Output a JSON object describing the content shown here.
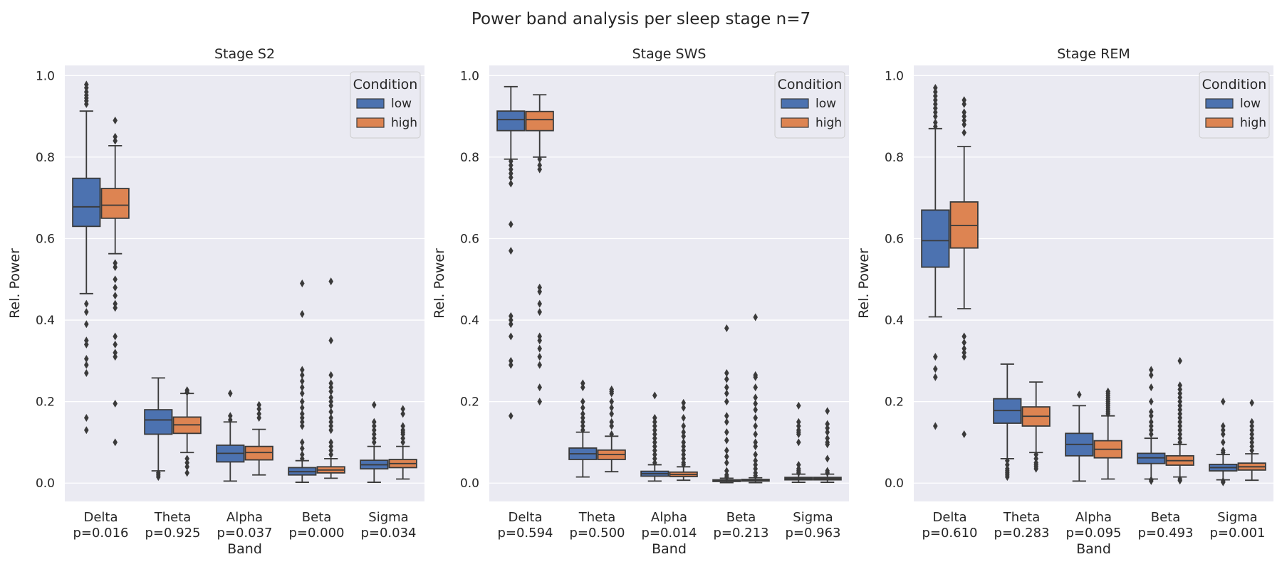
{
  "figure": {
    "title": "Power band analysis per sleep stage n=7"
  },
  "colors": {
    "low": "#4c72b0",
    "high": "#dd8452",
    "panel_bg": "#eaeaf2",
    "grid": "#ffffff",
    "line": "#3a3a3a"
  },
  "chart_data": [
    {
      "type": "box",
      "title": "Stage S2",
      "xlabel": "Band",
      "ylabel": "Rel. Power",
      "ylim": [
        -0.045,
        1.025
      ],
      "yticks": [
        "0.0",
        "0.2",
        "0.4",
        "0.6",
        "0.8",
        "1.0"
      ],
      "grid": true,
      "legend": {
        "title": "Condition",
        "placement": "top-right",
        "entries": [
          "low",
          "high"
        ]
      },
      "categories": [
        "Delta",
        "Theta",
        "Alpha",
        "Beta",
        "Sigma"
      ],
      "pvalues": [
        "p=0.016",
        "p=0.925",
        "p=0.037",
        "p=0.000",
        "p=0.034"
      ],
      "series": [
        {
          "name": "low",
          "boxes": [
            {
              "whislo": 0.465,
              "q1": 0.63,
              "med": 0.678,
              "q3": 0.748,
              "whishi": 0.913,
              "fliers": [
                0.978,
                0.97,
                0.96,
                0.952,
                0.945,
                0.938,
                0.93,
                0.44,
                0.42,
                0.39,
                0.35,
                0.34,
                0.305,
                0.29,
                0.27,
                0.16,
                0.13
              ]
            },
            {
              "whislo": 0.03,
              "q1": 0.12,
              "med": 0.155,
              "q3": 0.18,
              "whishi": 0.258,
              "fliers": [
                0.025,
                0.02,
                0.015
              ]
            },
            {
              "whislo": 0.005,
              "q1": 0.052,
              "med": 0.073,
              "q3": 0.093,
              "whishi": 0.15,
              "fliers": [
                0.22,
                0.165,
                0.155
              ]
            },
            {
              "whislo": 0.002,
              "q1": 0.02,
              "med": 0.028,
              "q3": 0.038,
              "whishi": 0.055,
              "fliers": [
                0.49,
                0.415,
                0.278,
                0.265,
                0.25,
                0.235,
                0.22,
                0.2,
                0.185,
                0.17,
                0.16,
                0.15,
                0.14,
                0.1,
                0.085,
                0.07,
                0.06
              ]
            },
            {
              "whislo": 0.002,
              "q1": 0.035,
              "med": 0.045,
              "q3": 0.056,
              "whishi": 0.09,
              "fliers": [
                0.192,
                0.15,
                0.14,
                0.13,
                0.12,
                0.11,
                0.1
              ]
            }
          ]
        },
        {
          "name": "high",
          "boxes": [
            {
              "whislo": 0.563,
              "q1": 0.65,
              "med": 0.682,
              "q3": 0.723,
              "whishi": 0.828,
              "fliers": [
                0.89,
                0.85,
                0.84,
                0.54,
                0.53,
                0.5,
                0.48,
                0.46,
                0.44,
                0.43,
                0.36,
                0.34,
                0.32,
                0.31,
                0.195,
                0.1
              ]
            },
            {
              "whislo": 0.075,
              "q1": 0.122,
              "med": 0.143,
              "q3": 0.162,
              "whishi": 0.22,
              "fliers": [
                0.228,
                0.223,
                0.06,
                0.05,
                0.04,
                0.025
              ]
            },
            {
              "whislo": 0.02,
              "q1": 0.057,
              "med": 0.075,
              "q3": 0.09,
              "whishi": 0.132,
              "fliers": [
                0.192,
                0.182,
                0.17,
                0.16
              ]
            },
            {
              "whislo": 0.012,
              "q1": 0.025,
              "med": 0.032,
              "q3": 0.04,
              "whishi": 0.06,
              "fliers": [
                0.495,
                0.35,
                0.265,
                0.245,
                0.235,
                0.225,
                0.21,
                0.2,
                0.19,
                0.175,
                0.16,
                0.15,
                0.14,
                0.13,
                0.1,
                0.09,
                0.08,
                0.07
              ]
            },
            {
              "whislo": 0.01,
              "q1": 0.038,
              "med": 0.048,
              "q3": 0.058,
              "whishi": 0.09,
              "fliers": [
                0.182,
                0.17,
                0.14,
                0.13,
                0.125,
                0.12,
                0.11,
                0.1
              ]
            }
          ]
        }
      ]
    },
    {
      "type": "box",
      "title": "Stage SWS",
      "xlabel": "Band",
      "ylabel": "Rel. Power",
      "ylim": [
        -0.045,
        1.025
      ],
      "yticks": [
        "0.0",
        "0.2",
        "0.4",
        "0.6",
        "0.8",
        "1.0"
      ],
      "grid": true,
      "legend": {
        "title": "Condition",
        "placement": "top-right",
        "entries": [
          "low",
          "high"
        ]
      },
      "categories": [
        "Delta",
        "Theta",
        "Alpha",
        "Beta",
        "Sigma"
      ],
      "pvalues": [
        "p=0.594",
        "p=0.500",
        "p=0.014",
        "p=0.213",
        "p=0.963"
      ],
      "series": [
        {
          "name": "low",
          "boxes": [
            {
              "whislo": 0.795,
              "q1": 0.865,
              "med": 0.892,
              "q3": 0.913,
              "whishi": 0.973,
              "fliers": [
                0.79,
                0.78,
                0.77,
                0.76,
                0.75,
                0.735,
                0.635,
                0.57,
                0.41,
                0.4,
                0.39,
                0.36,
                0.3,
                0.29,
                0.165
              ]
            },
            {
              "whislo": 0.015,
              "q1": 0.058,
              "med": 0.072,
              "q3": 0.086,
              "whishi": 0.125,
              "fliers": [
                0.245,
                0.235,
                0.2,
                0.185,
                0.17,
                0.16,
                0.15,
                0.14,
                0.13
              ]
            },
            {
              "whislo": 0.005,
              "q1": 0.017,
              "med": 0.023,
              "q3": 0.029,
              "whishi": 0.045,
              "fliers": [
                0.215,
                0.16,
                0.15,
                0.14,
                0.13,
                0.12,
                0.11,
                0.1,
                0.09,
                0.08,
                0.07,
                0.06,
                0.05
              ]
            },
            {
              "whislo": 0.001,
              "q1": 0.004,
              "med": 0.006,
              "q3": 0.008,
              "whishi": 0.012,
              "fliers": [
                0.38,
                0.27,
                0.255,
                0.235,
                0.22,
                0.2,
                0.165,
                0.15,
                0.125,
                0.105,
                0.08,
                0.065,
                0.05,
                0.03,
                0.02,
                0.015
              ]
            },
            {
              "whislo": 0.002,
              "q1": 0.008,
              "med": 0.011,
              "q3": 0.014,
              "whishi": 0.022,
              "fliers": [
                0.19,
                0.15,
                0.14,
                0.13,
                0.125,
                0.12,
                0.1,
                0.045,
                0.035,
                0.03,
                0.025
              ]
            }
          ]
        },
        {
          "name": "high",
          "boxes": [
            {
              "whislo": 0.8,
              "q1": 0.865,
              "med": 0.892,
              "q3": 0.912,
              "whishi": 0.953,
              "fliers": [
                0.795,
                0.78,
                0.77,
                0.48,
                0.47,
                0.44,
                0.42,
                0.36,
                0.35,
                0.33,
                0.31,
                0.29,
                0.235,
                0.2
              ]
            },
            {
              "whislo": 0.028,
              "q1": 0.058,
              "med": 0.07,
              "q3": 0.081,
              "whishi": 0.115,
              "fliers": [
                0.23,
                0.225,
                0.22,
                0.2,
                0.185,
                0.17,
                0.15,
                0.14,
                0.12
              ]
            },
            {
              "whislo": 0.007,
              "q1": 0.016,
              "med": 0.021,
              "q3": 0.027,
              "whishi": 0.04,
              "fliers": [
                0.197,
                0.185,
                0.16,
                0.14,
                0.125,
                0.115,
                0.1,
                0.09,
                0.08,
                0.07,
                0.06,
                0.05,
                0.045
              ]
            },
            {
              "whislo": 0.001,
              "q1": 0.005,
              "med": 0.007,
              "q3": 0.009,
              "whishi": 0.013,
              "fliers": [
                0.407,
                0.265,
                0.26,
                0.235,
                0.21,
                0.195,
                0.18,
                0.16,
                0.14,
                0.12,
                0.1,
                0.09,
                0.07,
                0.055,
                0.045,
                0.035,
                0.025,
                0.018
              ]
            },
            {
              "whislo": 0.002,
              "q1": 0.008,
              "med": 0.011,
              "q3": 0.014,
              "whishi": 0.022,
              "fliers": [
                0.177,
                0.145,
                0.135,
                0.125,
                0.11,
                0.1,
                0.095,
                0.06,
                0.03,
                0.025
              ]
            }
          ]
        }
      ]
    },
    {
      "type": "box",
      "title": "Stage REM",
      "xlabel": "Band",
      "ylabel": "Rel. Power",
      "ylim": [
        -0.045,
        1.025
      ],
      "yticks": [
        "0.0",
        "0.2",
        "0.4",
        "0.6",
        "0.8",
        "1.0"
      ],
      "grid": true,
      "legend": {
        "title": "Condition",
        "placement": "top-right",
        "entries": [
          "low",
          "high"
        ]
      },
      "categories": [
        "Delta",
        "Theta",
        "Alpha",
        "Beta",
        "Sigma"
      ],
      "pvalues": [
        "p=0.610",
        "p=0.283",
        "p=0.095",
        "p=0.493",
        "p=0.001"
      ],
      "series": [
        {
          "name": "low",
          "boxes": [
            {
              "whislo": 0.408,
              "q1": 0.53,
              "med": 0.595,
              "q3": 0.67,
              "whishi": 0.87,
              "fliers": [
                0.97,
                0.96,
                0.95,
                0.94,
                0.93,
                0.92,
                0.91,
                0.9,
                0.885,
                0.875,
                0.31,
                0.28,
                0.26,
                0.14
              ]
            },
            {
              "whislo": 0.06,
              "q1": 0.147,
              "med": 0.178,
              "q3": 0.207,
              "whishi": 0.292,
              "fliers": [
                0.055,
                0.045,
                0.035,
                0.03,
                0.025,
                0.02,
                0.015
              ]
            },
            {
              "whislo": 0.005,
              "q1": 0.067,
              "med": 0.095,
              "q3": 0.122,
              "whishi": 0.19,
              "fliers": [
                0.217
              ]
            },
            {
              "whislo": 0.01,
              "q1": 0.048,
              "med": 0.062,
              "q3": 0.073,
              "whishi": 0.11,
              "fliers": [
                0.278,
                0.265,
                0.235,
                0.2,
                0.175,
                0.165,
                0.15,
                0.14,
                0.13,
                0.12,
                0.008,
                0.005
              ]
            },
            {
              "whislo": 0.008,
              "q1": 0.03,
              "med": 0.038,
              "q3": 0.046,
              "whishi": 0.07,
              "fliers": [
                0.2,
                0.14,
                0.13,
                0.12,
                0.1,
                0.08,
                0.075,
                0.005,
                0.002
              ]
            }
          ]
        },
        {
          "name": "high",
          "boxes": [
            {
              "whislo": 0.428,
              "q1": 0.577,
              "med": 0.632,
              "q3": 0.69,
              "whishi": 0.826,
              "fliers": [
                0.94,
                0.93,
                0.91,
                0.9,
                0.89,
                0.88,
                0.86,
                0.36,
                0.345,
                0.33,
                0.32,
                0.31,
                0.12
              ]
            },
            {
              "whislo": 0.075,
              "q1": 0.14,
              "med": 0.164,
              "q3": 0.187,
              "whishi": 0.248,
              "fliers": [
                0.07,
                0.06,
                0.05,
                0.045,
                0.04,
                0.035
              ]
            },
            {
              "whislo": 0.01,
              "q1": 0.062,
              "med": 0.083,
              "q3": 0.104,
              "whishi": 0.165,
              "fliers": [
                0.225,
                0.22,
                0.215,
                0.21,
                0.205,
                0.2,
                0.195,
                0.19,
                0.185,
                0.18,
                0.175,
                0.17
              ]
            },
            {
              "whislo": 0.015,
              "q1": 0.044,
              "med": 0.055,
              "q3": 0.067,
              "whishi": 0.095,
              "fliers": [
                0.3,
                0.24,
                0.23,
                0.22,
                0.21,
                0.2,
                0.19,
                0.18,
                0.17,
                0.16,
                0.15,
                0.14,
                0.13,
                0.12,
                0.11,
                0.1,
                0.01,
                0.006
              ]
            },
            {
              "whislo": 0.007,
              "q1": 0.032,
              "med": 0.04,
              "q3": 0.049,
              "whishi": 0.072,
              "fliers": [
                0.197,
                0.15,
                0.14,
                0.13,
                0.12,
                0.11,
                0.1,
                0.09,
                0.08
              ]
            }
          ]
        }
      ]
    }
  ]
}
